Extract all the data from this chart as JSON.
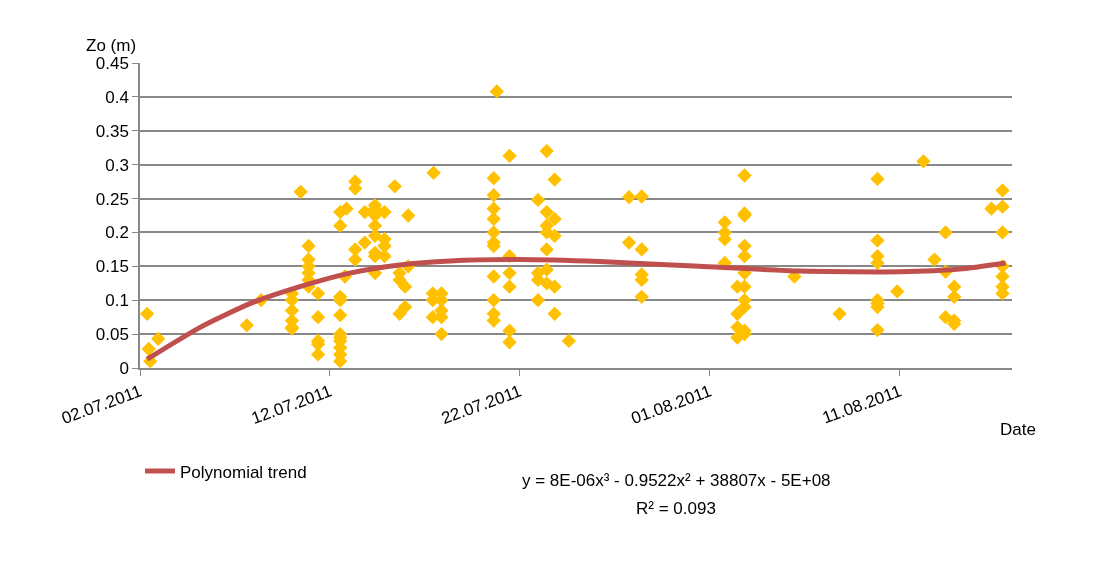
{
  "chart_data": {
    "type": "scatter",
    "xlabel": "Date",
    "ylabel": "Zo (m)",
    "marker": "diamond",
    "grid": "y",
    "legend": "bottom left",
    "xlim": [
      "2011-07-02",
      "2011-08-16T22:00"
    ],
    "xticks": [
      {
        "value": "2011-07-02",
        "label": "02.07.2011"
      },
      {
        "value": "2011-07-12",
        "label": "12.07.2011"
      },
      {
        "value": "2011-07-22",
        "label": "22.07.2011"
      },
      {
        "value": "2011-08-01",
        "label": "01.08.2011"
      },
      {
        "value": "2011-08-11",
        "label": "11.08.2011"
      }
    ],
    "ylim": [
      0,
      0.45
    ],
    "yticks": [
      0,
      0.05,
      0.1,
      0.15,
      0.2,
      0.25,
      0.3,
      0.35,
      0.4,
      0.45
    ],
    "annotations": [
      "y = 8E-06x³ - 0.9522x² + 38807x - 5E+08",
      "R² = 0.093"
    ],
    "series": [
      {
        "color": "#ffc000",
        "x": [
          "2011-07-02T09:00",
          "2011-07-02T11:00",
          "2011-07-02T13:00",
          "2011-07-02T23:00",
          "2011-07-07T15:00",
          "2011-07-08T09:00",
          "2011-07-10T00:00",
          "2011-07-10T00:00",
          "2011-07-10T00:00",
          "2011-07-10T00:00",
          "2011-07-10T00:00",
          "2011-07-10T00:00",
          "2011-07-10T11:00",
          "2011-07-10T21:00",
          "2011-07-10T21:00",
          "2011-07-10T21:00",
          "2011-07-10T21:00",
          "2011-07-10T21:00",
          "2011-07-10T21:00",
          "2011-07-11T09:00",
          "2011-07-11T09:00",
          "2011-07-11T09:00",
          "2011-07-11T09:00",
          "2011-07-11T09:00",
          "2011-07-12T13:00",
          "2011-07-12T13:00",
          "2011-07-12T13:00",
          "2011-07-12T13:00",
          "2011-07-12T13:00",
          "2011-07-12T13:00",
          "2011-07-12T13:00",
          "2011-07-12T13:00",
          "2011-07-12T13:00",
          "2011-07-12T13:00",
          "2011-07-12T13:00",
          "2011-07-12T21:00",
          "2011-07-13T08:00",
          "2011-07-13T08:00",
          "2011-07-13T08:00",
          "2011-07-13T08:00",
          "2011-07-12T19:00",
          "2011-07-13T20:00",
          "2011-07-13T20:00",
          "2011-07-14T09:00",
          "2011-07-14T09:00",
          "2011-07-14T09:00",
          "2011-07-14T09:00",
          "2011-07-14T09:00",
          "2011-07-14T09:00",
          "2011-07-14T09:00",
          "2011-07-14T09:00",
          "2011-07-14T21:00",
          "2011-07-14T21:00",
          "2011-07-14T21:00",
          "2011-07-14T21:00",
          "2011-07-15T10:00",
          "2011-07-15T16:00",
          "2011-07-15T16:00",
          "2011-07-15T16:00",
          "2011-07-15T23:00",
          "2011-07-15T23:00",
          "2011-07-16T03:00",
          "2011-07-16T03:00",
          "2011-07-17T11:00",
          "2011-07-17T10:00",
          "2011-07-17T10:00",
          "2011-07-17T10:00",
          "2011-07-17T21:00",
          "2011-07-17T21:00",
          "2011-07-17T21:00",
          "2011-07-17T21:00",
          "2011-07-17T21:00",
          "2011-07-20T19:00",
          "2011-07-20T15:00",
          "2011-07-20T15:00",
          "2011-07-20T15:00",
          "2011-07-20T15:00",
          "2011-07-20T15:00",
          "2011-07-20T15:00",
          "2011-07-20T15:00",
          "2011-07-20T15:00",
          "2011-07-20T15:00",
          "2011-07-20T15:00",
          "2011-07-20T15:00",
          "2011-07-21T11:00",
          "2011-07-21T11:00",
          "2011-07-21T11:00",
          "2011-07-21T11:00",
          "2011-07-21T11:00",
          "2011-07-21T11:00",
          "2011-07-22T23:00",
          "2011-07-22T23:00",
          "2011-07-22T23:00",
          "2011-07-22T23:00",
          "2011-07-23T10:00",
          "2011-07-23T10:00",
          "2011-07-23T10:00",
          "2011-07-23T10:00",
          "2011-07-23T10:00",
          "2011-07-23T10:00",
          "2011-07-23T10:00",
          "2011-07-23T20:00",
          "2011-07-23T20:00",
          "2011-07-23T20:00",
          "2011-07-23T20:00",
          "2011-07-23T20:00",
          "2011-07-24T14:00",
          "2011-07-27T18:00",
          "2011-07-27T18:00",
          "2011-07-28T10:00",
          "2011-07-28T10:00",
          "2011-07-28T10:00",
          "2011-07-28T10:00",
          "2011-07-28T10:00",
          "2011-08-01T19:00",
          "2011-08-01T19:00",
          "2011-08-01T19:00",
          "2011-08-01T19:00",
          "2011-08-02T20:00",
          "2011-08-02T20:00",
          "2011-08-02T20:00",
          "2011-08-02T20:00",
          "2011-08-02T20:00",
          "2011-08-02T20:00",
          "2011-08-02T20:00",
          "2011-08-02T20:00",
          "2011-08-02T20:00",
          "2011-08-02T20:00",
          "2011-08-02T20:00",
          "2011-08-02T11:00",
          "2011-08-02T11:00",
          "2011-08-02T11:00",
          "2011-08-02T11:00",
          "2011-08-05T11:00",
          "2011-08-07T20:00",
          "2011-08-09T20:00",
          "2011-08-09T20:00",
          "2011-08-09T20:00",
          "2011-08-09T20:00",
          "2011-08-09T20:00",
          "2011-08-09T20:00",
          "2011-08-09T20:00",
          "2011-08-09T20:00",
          "2011-08-10T21:00",
          "2011-08-12T06:00",
          "2011-08-12T20:00",
          "2011-08-13T10:00",
          "2011-08-13T10:00",
          "2011-08-13T10:00",
          "2011-08-13T21:00",
          "2011-08-13T21:00",
          "2011-08-13T21:00",
          "2011-08-13T21:00",
          "2011-08-15T20:00",
          "2011-08-16T10:00",
          "2011-08-16T10:00",
          "2011-08-16T10:00",
          "2011-08-16T10:00",
          "2011-08-16T10:00",
          "2011-08-16T10:00",
          "2011-08-16T10:00"
        ],
        "values": [
          0.08,
          0.028,
          0.01,
          0.043,
          0.063,
          0.1,
          0.11,
          0.1,
          0.085,
          0.07,
          0.06,
          0.058,
          0.26,
          0.18,
          0.16,
          0.15,
          0.14,
          0.13,
          0.12,
          0.11,
          0.075,
          0.04,
          0.035,
          0.02,
          0.23,
          0.21,
          0.105,
          0.1,
          0.078,
          0.05,
          0.045,
          0.04,
          0.03,
          0.02,
          0.01,
          0.235,
          0.275,
          0.265,
          0.175,
          0.16,
          0.135,
          0.23,
          0.185,
          0.24,
          0.235,
          0.225,
          0.21,
          0.195,
          0.17,
          0.165,
          0.14,
          0.23,
          0.19,
          0.18,
          0.165,
          0.268,
          0.14,
          0.13,
          0.08,
          0.09,
          0.12,
          0.225,
          0.15,
          0.288,
          0.11,
          0.1,
          0.075,
          0.11,
          0.1,
          0.085,
          0.075,
          0.05,
          0.408,
          0.28,
          0.255,
          0.235,
          0.22,
          0.2,
          0.185,
          0.18,
          0.135,
          0.1,
          0.08,
          0.07,
          0.313,
          0.165,
          0.14,
          0.12,
          0.055,
          0.038,
          0.248,
          0.14,
          0.13,
          0.1,
          0.32,
          0.23,
          0.21,
          0.2,
          0.175,
          0.145,
          0.125,
          0.278,
          0.22,
          0.195,
          0.12,
          0.08,
          0.04,
          0.252,
          0.185,
          0.253,
          0.175,
          0.138,
          0.13,
          0.105,
          0.215,
          0.2,
          0.19,
          0.155,
          0.284,
          0.228,
          0.225,
          0.18,
          0.165,
          0.14,
          0.12,
          0.1,
          0.09,
          0.055,
          0.05,
          0.12,
          0.08,
          0.06,
          0.045,
          0.135,
          0.08,
          0.279,
          0.188,
          0.165,
          0.155,
          0.1,
          0.095,
          0.09,
          0.056,
          0.113,
          0.305,
          0.16,
          0.2,
          0.142,
          0.075,
          0.12,
          0.105,
          0.07,
          0.065,
          0.235,
          0.262,
          0.238,
          0.2,
          0.15,
          0.135,
          0.12,
          0.11
        ]
      },
      {
        "type": "line",
        "name": "Polynomial trend",
        "color": "#c0504d",
        "marker": "none",
        "line_style": "solid",
        "x": [
          "2011-07-02T09:00",
          "2011-07-05T04:00",
          "2011-07-07T19:00",
          "2011-07-10T10:00",
          "2011-07-13T01:00",
          "2011-07-15T16:00",
          "2011-07-18T08:00",
          "2011-07-22T00:00",
          "2011-07-26T05:00",
          "2011-07-31T11:00",
          "2011-08-05T18:00",
          "2011-08-11T00:00",
          "2011-08-14T04:00",
          "2011-08-16T14:00"
        ],
        "values": [
          0.013,
          0.06,
          0.095,
          0.12,
          0.14,
          0.152,
          0.158,
          0.16,
          0.157,
          0.15,
          0.143,
          0.142,
          0.146,
          0.155
        ]
      }
    ]
  }
}
